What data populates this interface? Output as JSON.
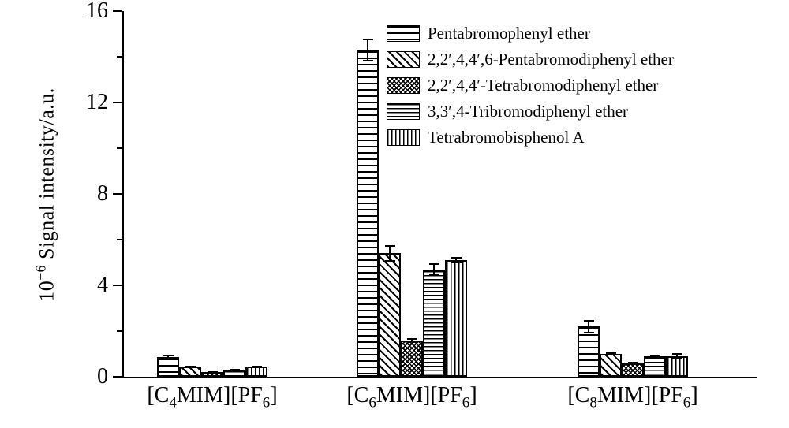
{
  "figure": {
    "background": "#ffffff"
  },
  "chart_data": {
    "type": "bar",
    "title": "",
    "ylabel": "10^-6 Signal intensity/a.u.",
    "ylabel_segments": [
      {
        "t": "10"
      },
      {
        "sup": "−6"
      },
      {
        "t": " Signal intensity/a.u."
      }
    ],
    "ylim": [
      0,
      16
    ],
    "yticks_major": [
      0,
      4,
      8,
      12,
      16
    ],
    "yticks_minor": [
      2,
      6,
      10,
      14
    ],
    "grid": false,
    "legend_position": "upper-center-right",
    "categories": [
      "[C4MIM][PF6]",
      "[C6MIM][PF6]",
      "[C8MIM][PF6]"
    ],
    "categories_segments": [
      [
        {
          "t": "[C"
        },
        {
          "sub": "4"
        },
        {
          "t": "MIM][PF"
        },
        {
          "sub": "6"
        },
        {
          "t": "]"
        }
      ],
      [
        {
          "t": "[C"
        },
        {
          "sub": "6"
        },
        {
          "t": "MIM][PF"
        },
        {
          "sub": "6"
        },
        {
          "t": "]"
        }
      ],
      [
        {
          "t": "[C"
        },
        {
          "sub": "8"
        },
        {
          "t": "MIM][PF"
        },
        {
          "sub": "6"
        },
        {
          "t": "]"
        }
      ]
    ],
    "series": [
      {
        "name": "Pentabromophenyl ether",
        "pattern": "hlines-wide",
        "values": [
          0.85,
          14.3,
          2.2
        ],
        "errors": [
          0.12,
          0.5,
          0.3
        ]
      },
      {
        "name": "2,2′,4,4′,6-Pentabromodiphenyl ether",
        "pattern": "diag",
        "values": [
          0.45,
          5.4,
          1.0
        ],
        "errors": [
          0.05,
          0.35,
          0.08
        ]
      },
      {
        "name": "2,2′,4,4′-Tetrabromodiphenyl ether",
        "pattern": "crosshatch",
        "values": [
          0.2,
          1.6,
          0.6
        ],
        "errors": [
          0.03,
          0.1,
          0.05
        ]
      },
      {
        "name": "3,3′,4-Tribromodiphenyl ether",
        "pattern": "hlines-dense",
        "values": [
          0.3,
          4.7,
          0.9
        ],
        "errors": [
          0.04,
          0.25,
          0.07
        ]
      },
      {
        "name": "Tetrabromobisphenol A",
        "pattern": "vlines",
        "values": [
          0.45,
          5.1,
          0.9
        ],
        "errors": [
          0.05,
          0.15,
          0.15
        ]
      }
    ],
    "colors": {
      "axis": "#000000",
      "bar_fill": "#ffffff",
      "bar_stroke": "#000000",
      "background": "#ffffff"
    }
  }
}
